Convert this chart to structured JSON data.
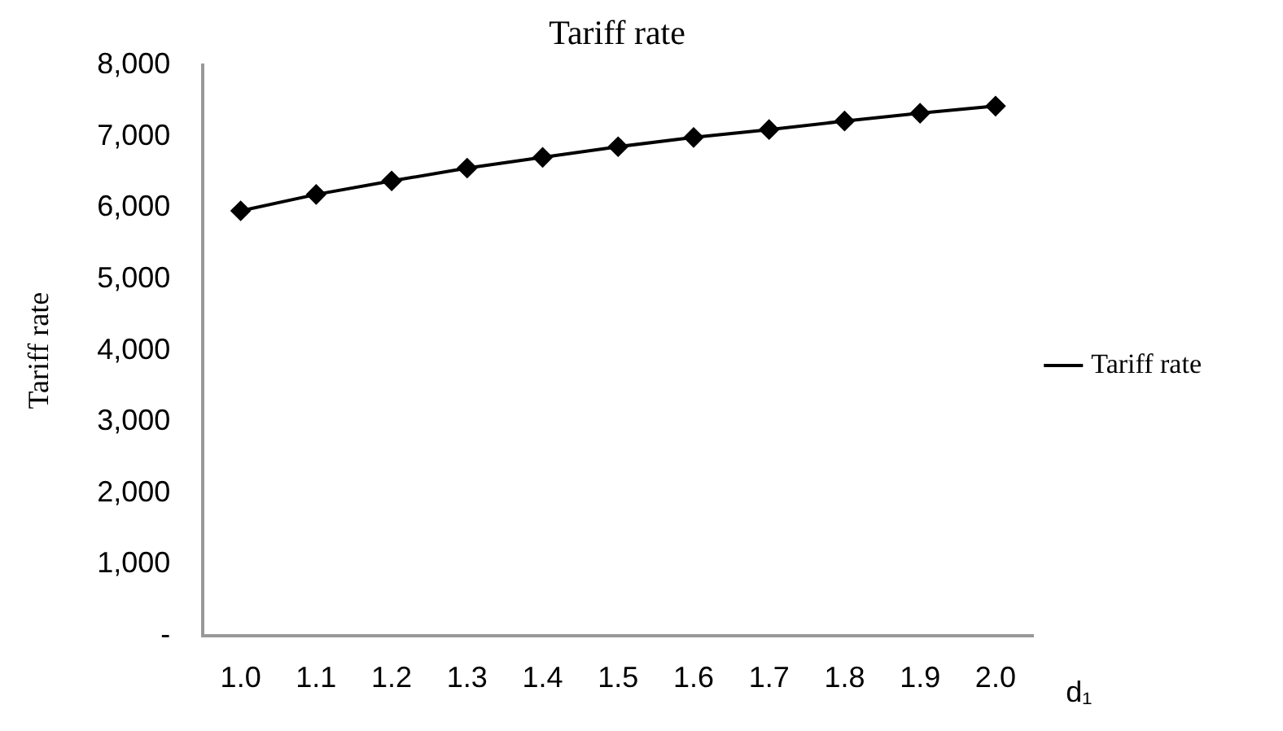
{
  "chart_data": {
    "type": "line",
    "title": "Tariff rate",
    "xlabel": "d₁",
    "ylabel": "Tariff rate",
    "categories": [
      "1.0",
      "1.1",
      "1.2",
      "1.3",
      "1.4",
      "1.5",
      "1.6",
      "1.7",
      "1.8",
      "1.9",
      "2.0"
    ],
    "series": [
      {
        "name": "Tariff rate",
        "color": "#000000",
        "values": [
          5960,
          6190,
          6380,
          6560,
          6710,
          6860,
          6990,
          7100,
          7220,
          7330,
          7430
        ]
      }
    ],
    "ylim": [
      0,
      8000
    ],
    "yticks": [
      {
        "value": 0,
        "label": "-"
      },
      {
        "value": 1000,
        "label": "1,000"
      },
      {
        "value": 2000,
        "label": "2,000"
      },
      {
        "value": 3000,
        "label": "3,000"
      },
      {
        "value": 4000,
        "label": "4,000"
      },
      {
        "value": 5000,
        "label": "5,000"
      },
      {
        "value": 6000,
        "label": "6,000"
      },
      {
        "value": 7000,
        "label": "7,000"
      },
      {
        "value": 8000,
        "label": "8,000"
      }
    ],
    "grid": false,
    "legend": "right",
    "marker": "diamond",
    "line_style": "solid"
  }
}
